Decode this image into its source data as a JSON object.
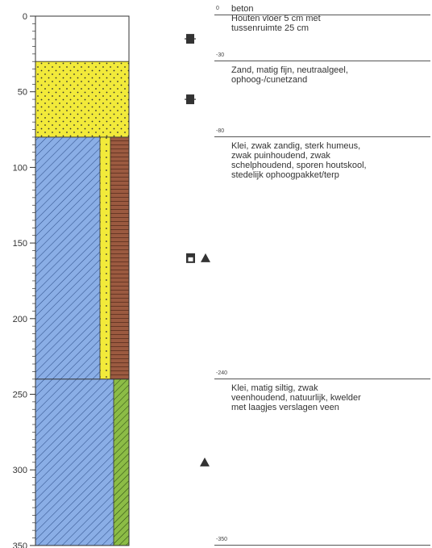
{
  "axis": {
    "ticks": [
      0,
      50,
      100,
      150,
      200,
      250,
      300,
      350
    ],
    "range": [
      0,
      350
    ]
  },
  "layers": [
    {
      "top": 0,
      "bottom": 30,
      "top_label": "0",
      "description": "beton\nHouten vloer 5 cm met\ntussenruimte 25 cm",
      "pattern": "blank",
      "colors": [
        "#ffffff"
      ]
    },
    {
      "top": 30,
      "bottom": 80,
      "top_label": "-30",
      "description": "Zand, matig fijn, neutraalgeel,\nophoog-/cunetzand",
      "pattern": "sand-dots",
      "colors": [
        "#f2ea3a"
      ]
    },
    {
      "top": 80,
      "bottom": 240,
      "top_label": "-80",
      "description": "Klei, zwak zandig, sterk humeus,\nzwak puinhoudend, zwak\nschelphoudend, sporen houtskool,\nstedelijk ophoogpakket/terp",
      "pattern": "clay+sand+humus",
      "colors": [
        "#8aaee6",
        "#f2ea3a",
        "#9b5a40"
      ]
    },
    {
      "top": 240,
      "bottom": 350,
      "top_label": "-240",
      "description": "Klei, matig siltig, zwak\nveenhoudend, natuurlijk, kwelder\nmet laagjes verslagen veen",
      "pattern": "clay+peat",
      "colors": [
        "#8aaee6",
        "#8cbc46"
      ]
    }
  ],
  "bottom_label": "-350",
  "samples": [
    {
      "depth": 15,
      "symbol": "square-sample"
    },
    {
      "depth": 55,
      "symbol": "square-sample"
    },
    {
      "depth": 160,
      "symbol": "open-square-sample"
    },
    {
      "depth": 160,
      "symbol": "triangle"
    },
    {
      "depth": 295,
      "symbol": "triangle"
    }
  ]
}
